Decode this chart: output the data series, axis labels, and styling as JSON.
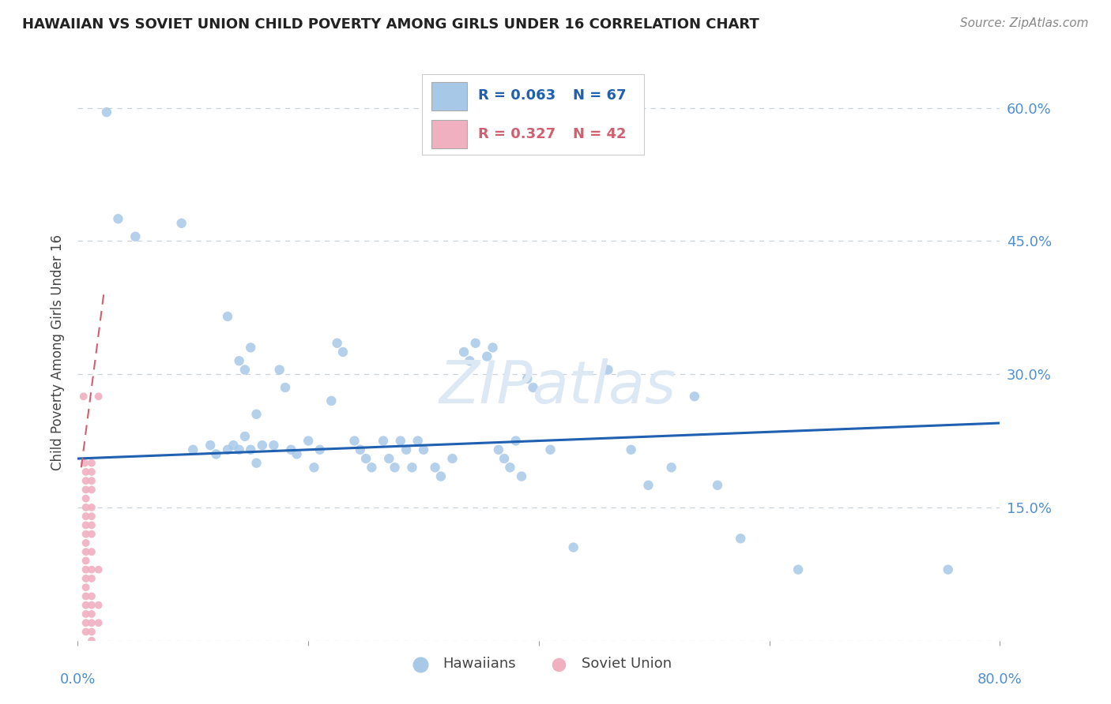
{
  "title": "HAWAIIAN VS SOVIET UNION CHILD POVERTY AMONG GIRLS UNDER 16 CORRELATION CHART",
  "source": "Source: ZipAtlas.com",
  "ylabel": "Child Poverty Among Girls Under 16",
  "xlim": [
    0.0,
    0.8
  ],
  "ylim": [
    0.0,
    0.65
  ],
  "yticks": [
    0.0,
    0.15,
    0.3,
    0.45,
    0.6
  ],
  "ytick_labels": [
    "",
    "15.0%",
    "30.0%",
    "45.0%",
    "60.0%"
  ],
  "xticks": [
    0.0,
    0.2,
    0.4,
    0.6,
    0.8
  ],
  "background_color": "#ffffff",
  "grid_color": "#c8d0d8",
  "hawaiian_color": "#a8c8e8",
  "soviet_color": "#f0b0c0",
  "trendline_hawaiian_color": "#2060b0",
  "trendline_soviet_color": "#d06070",
  "tick_label_color": "#5090d0",
  "legend_r_color": "#2060b0",
  "legend_r_soviet_color": "#d06070",
  "hawaiian_points": [
    [
      0.025,
      0.595
    ],
    [
      0.035,
      0.475
    ],
    [
      0.05,
      0.455
    ],
    [
      0.09,
      0.47
    ],
    [
      0.13,
      0.365
    ],
    [
      0.14,
      0.315
    ],
    [
      0.145,
      0.305
    ],
    [
      0.15,
      0.33
    ],
    [
      0.155,
      0.255
    ],
    [
      0.1,
      0.215
    ],
    [
      0.115,
      0.22
    ],
    [
      0.12,
      0.21
    ],
    [
      0.13,
      0.215
    ],
    [
      0.135,
      0.22
    ],
    [
      0.14,
      0.215
    ],
    [
      0.145,
      0.23
    ],
    [
      0.15,
      0.215
    ],
    [
      0.155,
      0.2
    ],
    [
      0.16,
      0.22
    ],
    [
      0.17,
      0.22
    ],
    [
      0.175,
      0.305
    ],
    [
      0.18,
      0.285
    ],
    [
      0.185,
      0.215
    ],
    [
      0.19,
      0.21
    ],
    [
      0.2,
      0.225
    ],
    [
      0.205,
      0.195
    ],
    [
      0.21,
      0.215
    ],
    [
      0.22,
      0.27
    ],
    [
      0.225,
      0.335
    ],
    [
      0.23,
      0.325
    ],
    [
      0.24,
      0.225
    ],
    [
      0.245,
      0.215
    ],
    [
      0.25,
      0.205
    ],
    [
      0.255,
      0.195
    ],
    [
      0.265,
      0.225
    ],
    [
      0.27,
      0.205
    ],
    [
      0.275,
      0.195
    ],
    [
      0.28,
      0.225
    ],
    [
      0.285,
      0.215
    ],
    [
      0.29,
      0.195
    ],
    [
      0.295,
      0.225
    ],
    [
      0.3,
      0.215
    ],
    [
      0.31,
      0.195
    ],
    [
      0.315,
      0.185
    ],
    [
      0.325,
      0.205
    ],
    [
      0.335,
      0.325
    ],
    [
      0.34,
      0.315
    ],
    [
      0.345,
      0.335
    ],
    [
      0.355,
      0.32
    ],
    [
      0.36,
      0.33
    ],
    [
      0.365,
      0.215
    ],
    [
      0.37,
      0.205
    ],
    [
      0.375,
      0.195
    ],
    [
      0.38,
      0.225
    ],
    [
      0.385,
      0.185
    ],
    [
      0.39,
      0.295
    ],
    [
      0.395,
      0.285
    ],
    [
      0.41,
      0.215
    ],
    [
      0.43,
      0.105
    ],
    [
      0.46,
      0.305
    ],
    [
      0.48,
      0.215
    ],
    [
      0.495,
      0.175
    ],
    [
      0.515,
      0.195
    ],
    [
      0.535,
      0.275
    ],
    [
      0.555,
      0.175
    ],
    [
      0.575,
      0.115
    ],
    [
      0.625,
      0.08
    ],
    [
      0.755,
      0.08
    ]
  ],
  "soviet_points": [
    [
      0.005,
      0.275
    ],
    [
      0.006,
      0.2
    ],
    [
      0.007,
      0.19
    ],
    [
      0.007,
      0.18
    ],
    [
      0.007,
      0.17
    ],
    [
      0.007,
      0.16
    ],
    [
      0.007,
      0.15
    ],
    [
      0.007,
      0.14
    ],
    [
      0.007,
      0.13
    ],
    [
      0.007,
      0.12
    ],
    [
      0.007,
      0.11
    ],
    [
      0.007,
      0.1
    ],
    [
      0.007,
      0.09
    ],
    [
      0.007,
      0.08
    ],
    [
      0.007,
      0.07
    ],
    [
      0.007,
      0.06
    ],
    [
      0.007,
      0.05
    ],
    [
      0.007,
      0.04
    ],
    [
      0.007,
      0.03
    ],
    [
      0.007,
      0.02
    ],
    [
      0.007,
      0.01
    ],
    [
      0.012,
      0.2
    ],
    [
      0.012,
      0.19
    ],
    [
      0.012,
      0.18
    ],
    [
      0.012,
      0.17
    ],
    [
      0.012,
      0.15
    ],
    [
      0.012,
      0.14
    ],
    [
      0.012,
      0.13
    ],
    [
      0.012,
      0.12
    ],
    [
      0.012,
      0.1
    ],
    [
      0.012,
      0.08
    ],
    [
      0.012,
      0.07
    ],
    [
      0.012,
      0.05
    ],
    [
      0.012,
      0.04
    ],
    [
      0.012,
      0.03
    ],
    [
      0.012,
      0.02
    ],
    [
      0.012,
      0.01
    ],
    [
      0.012,
      0.0
    ],
    [
      0.018,
      0.08
    ],
    [
      0.018,
      0.04
    ],
    [
      0.018,
      0.02
    ],
    [
      0.018,
      0.275
    ]
  ],
  "hawaiian_trendline": [
    [
      0.0,
      0.205
    ],
    [
      0.8,
      0.245
    ]
  ],
  "soviet_trendline": [
    [
      0.003,
      0.195
    ],
    [
      0.023,
      0.395
    ]
  ]
}
